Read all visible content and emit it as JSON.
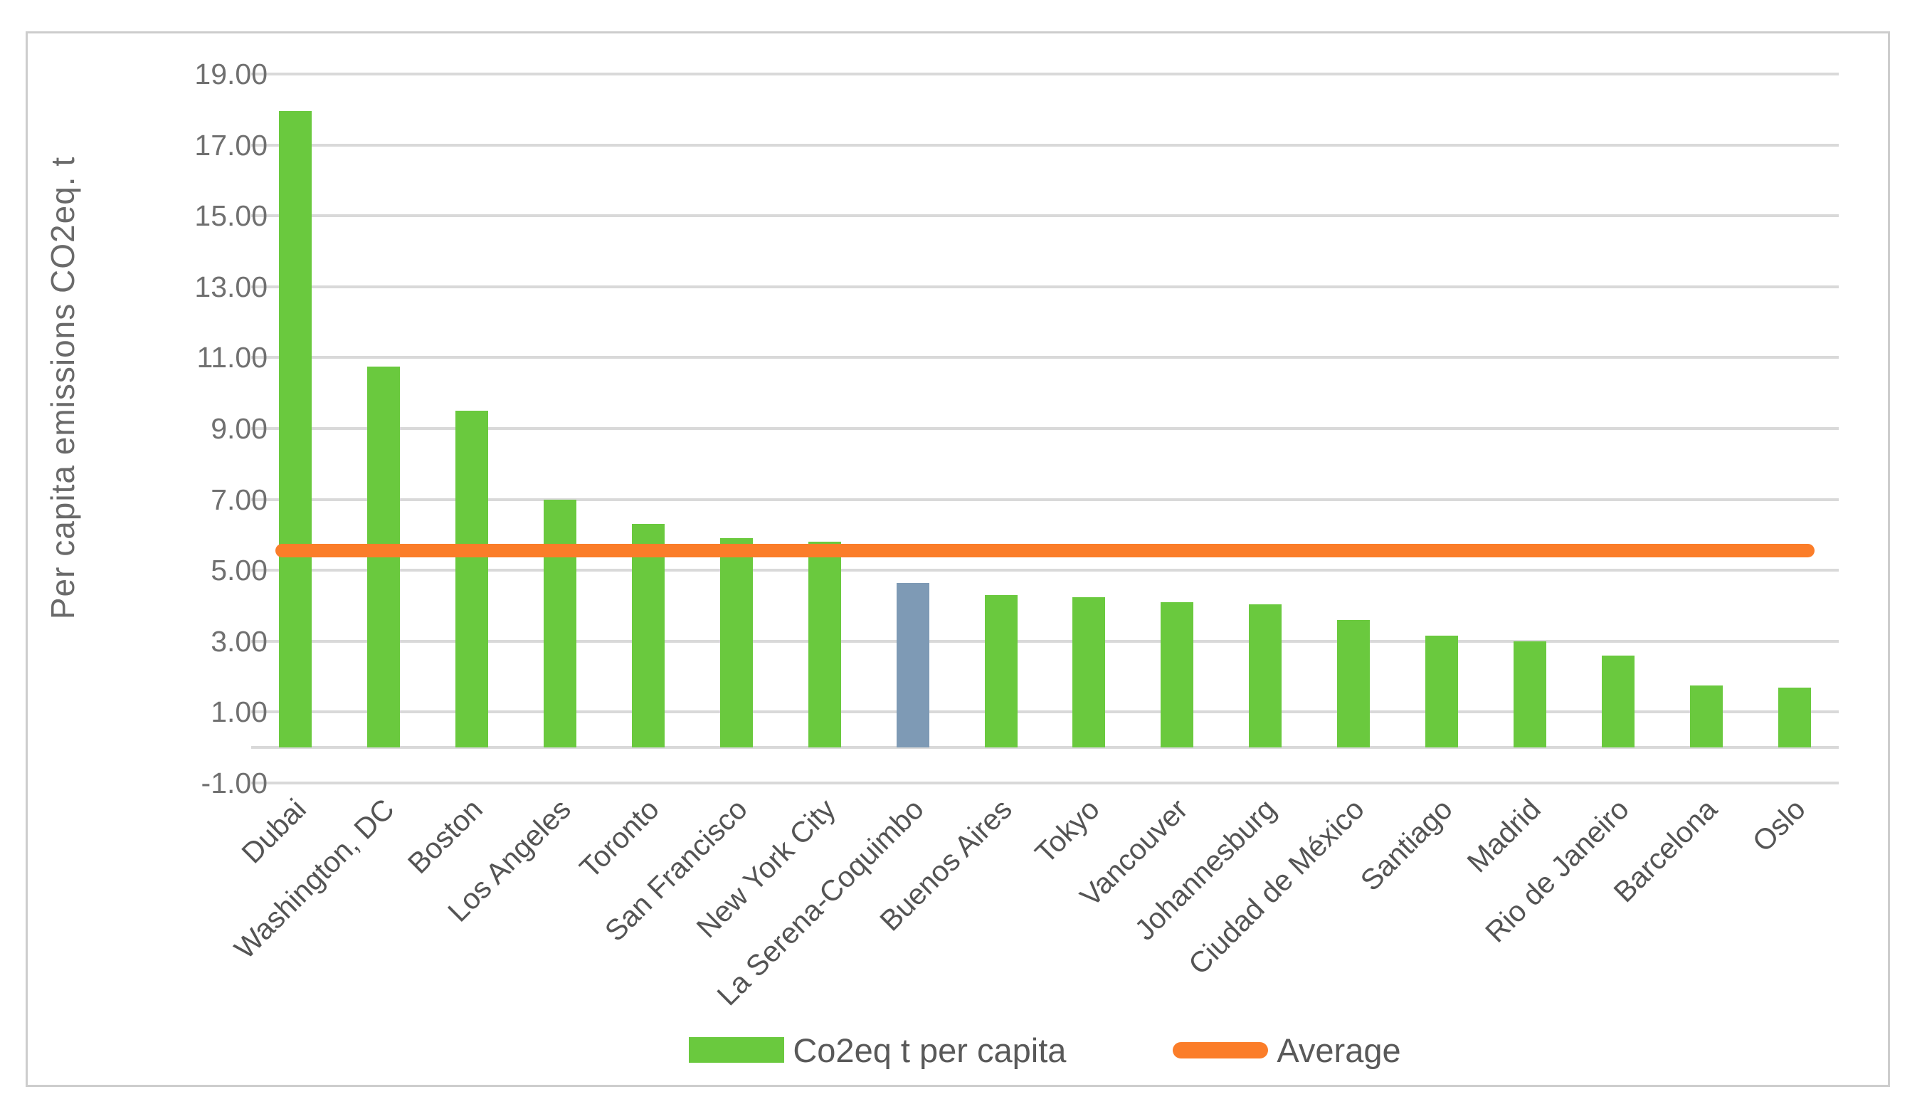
{
  "chart_data": {
    "type": "bar",
    "title": "",
    "xlabel": "",
    "ylabel": "Per capita emissions CO2eq. t",
    "categories": [
      "Dubai",
      "Washington, DC",
      "Boston",
      "Los Angeles",
      "Toronto",
      "San Francisco",
      "New York City",
      "La Serena-Coquimbo",
      "Buenos Aires",
      "Tokyo",
      "Vancouver",
      "Johannesburg",
      "Ciudad de México",
      "Santiago",
      "Madrid",
      "Rio de Janeiro",
      "Barcelona",
      "Oslo"
    ],
    "series": [
      {
        "name": "Co2eq t per capita",
        "values": [
          17.95,
          10.75,
          9.5,
          7.0,
          6.3,
          5.9,
          5.8,
          4.65,
          4.3,
          4.25,
          4.1,
          4.05,
          3.6,
          3.15,
          3.0,
          2.6,
          1.75,
          1.7
        ]
      }
    ],
    "average_line": {
      "name": "Average",
      "value": 5.55
    },
    "ylim": [
      -1,
      19
    ],
    "ytick_step": 2,
    "yticks": [
      "19.00",
      "17.00",
      "15.00",
      "13.00",
      "11.00",
      "9.00",
      "7.00",
      "5.00",
      "3.00",
      "1.00",
      "-1.00"
    ],
    "grid": true,
    "legend_position": "bottom-center",
    "highlight_category": "La Serena-Coquimbo",
    "highlight_index": 7,
    "colors": {
      "bar": "#6ac93e",
      "highlight_bar": "#7e9ab5",
      "average_line": "#fb7d29",
      "gridline": "#d9d9d9",
      "tick_text": "#707070",
      "category_text": "#545454",
      "legend_text": "#595959",
      "axis_title_text": "#6a6a6a",
      "frame_border": "#cdcdcd"
    }
  },
  "legend": {
    "series_label": "Co2eq t per capita",
    "average_label": "Average"
  }
}
